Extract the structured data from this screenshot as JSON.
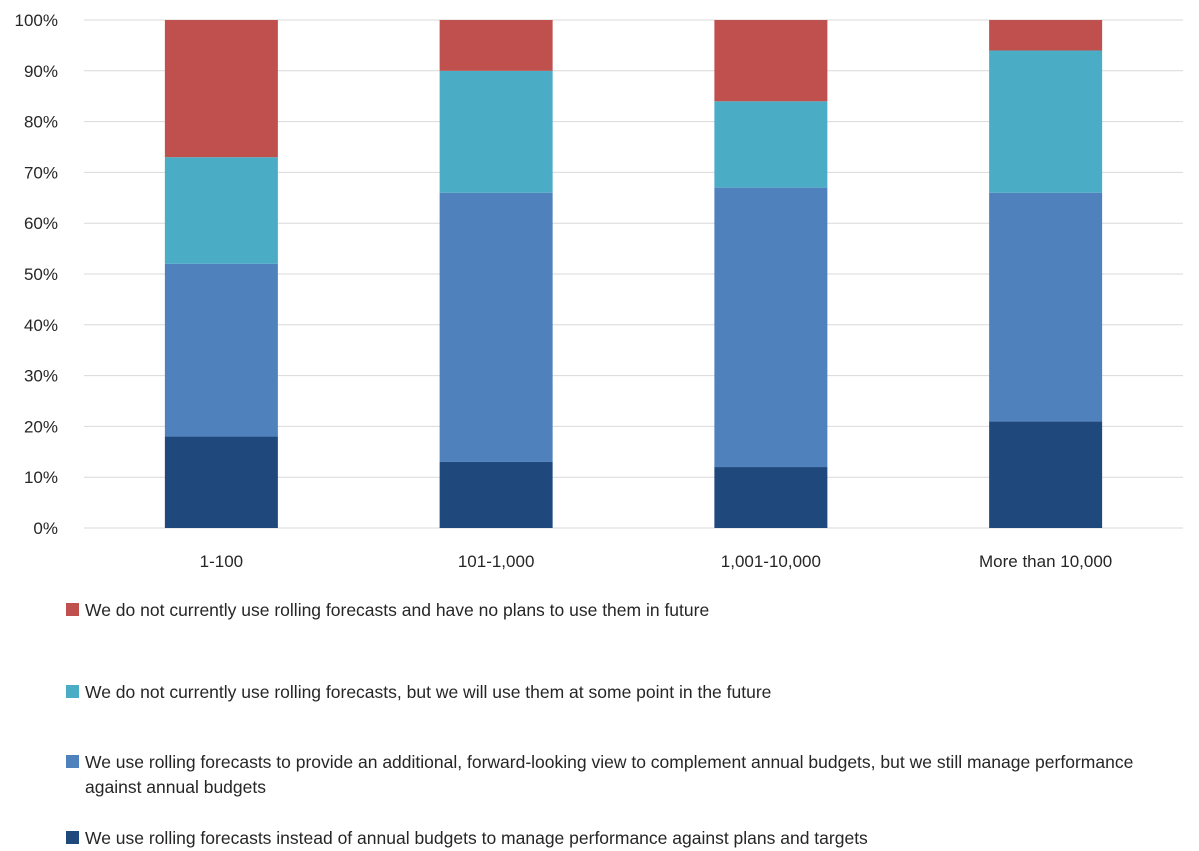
{
  "chart_data": {
    "type": "bar",
    "stacked": true,
    "stack_mode": "percent",
    "categories": [
      "1-100",
      "101-1,000",
      "1,001-10,000",
      "More than 10,000"
    ],
    "series": [
      {
        "name": "We use rolling forecasts instead of annual budgets to manage performance against plans and targets",
        "color": "#1f497d",
        "values": [
          18,
          13,
          12,
          21
        ]
      },
      {
        "name": "We use rolling forecasts to provide an additional, forward-looking view to complement annual budgets, but we still manage performance against annual budgets",
        "color": "#4f81bd",
        "values": [
          34,
          53,
          55,
          45
        ]
      },
      {
        "name": "We do not currently use rolling forecasts, but we will use them at some point in the future",
        "color": "#4bacc6",
        "values": [
          21,
          24,
          17,
          28
        ]
      },
      {
        "name": "We do not currently use rolling forecasts and have no plans to use them in future",
        "color": "#c0504d",
        "values": [
          27,
          10,
          16,
          6
        ]
      }
    ],
    "ylim": [
      0,
      100
    ],
    "yticks": [
      "0%",
      "10%",
      "20%",
      "30%",
      "40%",
      "50%",
      "60%",
      "70%",
      "80%",
      "90%",
      "100%"
    ],
    "grid": true,
    "legend_position": "bottom",
    "legend_order": [
      3,
      2,
      1,
      0
    ],
    "title": "",
    "xlabel": "",
    "ylabel": ""
  }
}
